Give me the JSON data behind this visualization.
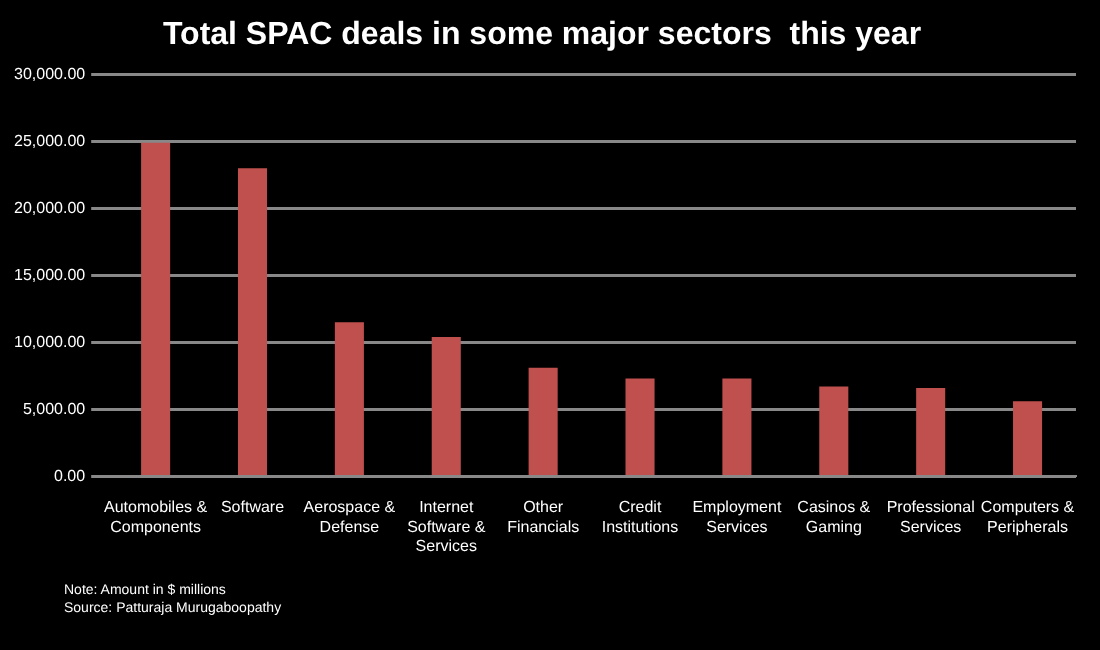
{
  "chart_data": {
    "type": "bar",
    "title": "Total SPAC deals in some major sectors  this year",
    "categories": [
      "Automobiles & Components",
      "Software",
      "Aerospace & Defense",
      "Internet Software & Services",
      "Other Financials",
      "Credit Institutions",
      "Employment Services",
      "Casinos & Gaming",
      "Professional Services",
      "Computers & Peripherals"
    ],
    "values": [
      24900,
      23000,
      11500,
      10400,
      8100,
      7300,
      7300,
      6700,
      6600,
      5600
    ],
    "color": "#c0504d",
    "ylim": [
      0,
      30000
    ],
    "yticks": [
      {
        "value": 0,
        "label": "0.00"
      },
      {
        "value": 5000,
        "label": "5,000.00"
      },
      {
        "value": 10000,
        "label": "10,000.00"
      },
      {
        "value": 15000,
        "label": "15,000.00"
      },
      {
        "value": 20000,
        "label": "20,000.00"
      },
      {
        "value": 25000,
        "label": "25,000.00"
      },
      {
        "value": 30000,
        "label": "30,000.00"
      }
    ],
    "grid": "y",
    "annotations": [
      "Note: Amount in $ millions",
      "Source: Patturaja Murugaboopathy"
    ]
  }
}
